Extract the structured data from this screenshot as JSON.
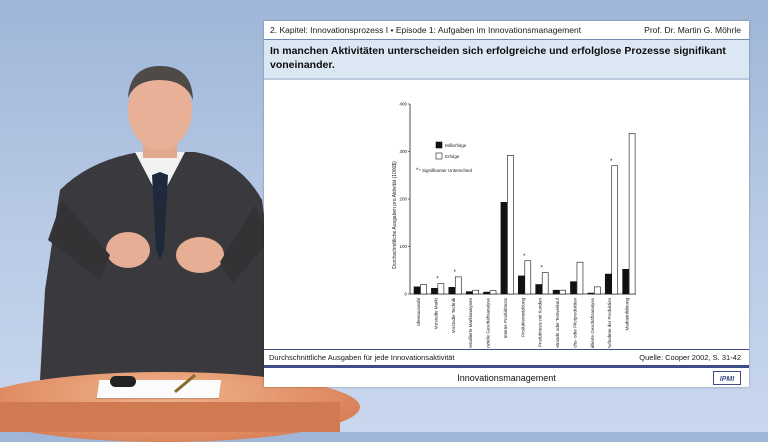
{
  "slide": {
    "chapter": "2. Kapitel: Innovationsprozess I  •  Episode 1: Aufgaben im Innovationsmanagement",
    "author": "Prof. Dr. Martin G. Möhrle",
    "title": "In manchen Aktivitäten unterscheiden sich erfolgreiche und erfolglose Prozesse signifikant voneinander.",
    "caption": "Durchschnittliche Ausgaben für jede Innovationsaktivität",
    "source": "Quelle: Cooper 2002, S. 31-42",
    "footer": "Innovationsmanagement",
    "logo_text": "IPMI"
  },
  "chart_data": {
    "type": "bar",
    "ylabel": "Durchschnittliche Ausgaben pro Aktivität (1000$)",
    "ylim": [
      0,
      400
    ],
    "yticks": [
      0,
      100,
      200,
      300,
      400
    ],
    "legend_position": "top-left",
    "annotation": "* Signifikanter Unterschied",
    "categories": [
      "Ideenauswahl",
      "Vorstudie Markt",
      "Vorstudie Technik",
      "Detaillierte Marktanalysen",
      "Finanzielle Geschäftsanalyse",
      "Interne Produkttests",
      "Produktentwicklung",
      "Produkttests mit Kunden",
      "Testmarkt oder Testverkauf",
      "Versuchs- oder Pilotproduktion",
      "Detaillierte Geschäftsanalyse",
      "Aufnahme der Produktion",
      "Markteinführung"
    ],
    "significant": [
      false,
      true,
      true,
      false,
      false,
      false,
      true,
      true,
      false,
      false,
      false,
      true,
      false
    ],
    "series": [
      {
        "name": "Mißerfolge",
        "color": "#111111",
        "values": [
          15,
          12,
          14,
          5,
          4,
          193,
          38,
          20,
          8,
          26,
          2,
          42,
          52
        ]
      },
      {
        "name": "Erfolge",
        "color": "#ffffff",
        "values": [
          20,
          22,
          36,
          8,
          7,
          292,
          70,
          45,
          8,
          67,
          15,
          270,
          338
        ]
      }
    ]
  }
}
